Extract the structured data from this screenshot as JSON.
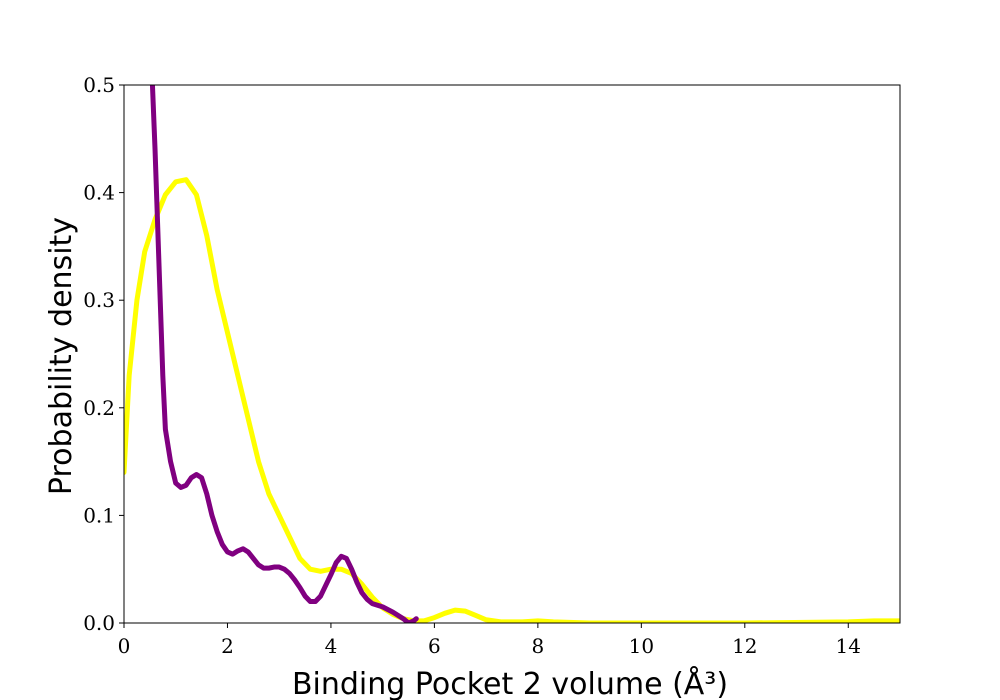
{
  "chart_data": {
    "type": "line",
    "title": "",
    "xlabel": "Binding Pocket 2 volume (Å³)",
    "ylabel": "Probability density",
    "xlim": [
      0,
      15
    ],
    "ylim": [
      0,
      0.5
    ],
    "x_ticks": [
      0,
      2,
      4,
      6,
      8,
      10,
      12,
      14
    ],
    "y_ticks": [
      0.0,
      0.1,
      0.2,
      0.3,
      0.4,
      0.5
    ],
    "x_tick_labels": [
      "0",
      "2",
      "4",
      "6",
      "8",
      "10",
      "12",
      "14"
    ],
    "y_tick_labels": [
      "0.0",
      "0.1",
      "0.2",
      "0.3",
      "0.4",
      "0.5"
    ],
    "grid": false,
    "legend": "none",
    "series": [
      {
        "color": "#ffff00",
        "points": [
          [
            0.0,
            0.14
          ],
          [
            0.1,
            0.23
          ],
          [
            0.25,
            0.3
          ],
          [
            0.4,
            0.345
          ],
          [
            0.6,
            0.375
          ],
          [
            0.8,
            0.398
          ],
          [
            1.0,
            0.41
          ],
          [
            1.2,
            0.412
          ],
          [
            1.4,
            0.398
          ],
          [
            1.6,
            0.36
          ],
          [
            1.8,
            0.31
          ],
          [
            2.0,
            0.27
          ],
          [
            2.2,
            0.23
          ],
          [
            2.4,
            0.19
          ],
          [
            2.6,
            0.15
          ],
          [
            2.8,
            0.12
          ],
          [
            3.0,
            0.1
          ],
          [
            3.2,
            0.08
          ],
          [
            3.4,
            0.06
          ],
          [
            3.6,
            0.05
          ],
          [
            3.8,
            0.048
          ],
          [
            4.0,
            0.05
          ],
          [
            4.2,
            0.05
          ],
          [
            4.4,
            0.046
          ],
          [
            4.6,
            0.036
          ],
          [
            4.8,
            0.024
          ],
          [
            5.0,
            0.014
          ],
          [
            5.2,
            0.008
          ],
          [
            5.4,
            0.004
          ],
          [
            5.6,
            0.002
          ],
          [
            5.8,
            0.002
          ],
          [
            6.0,
            0.005
          ],
          [
            6.2,
            0.009
          ],
          [
            6.4,
            0.012
          ],
          [
            6.6,
            0.011
          ],
          [
            6.8,
            0.007
          ],
          [
            7.0,
            0.003
          ],
          [
            7.3,
            0.001
          ],
          [
            7.7,
            0.001
          ],
          [
            8.0,
            0.002
          ],
          [
            8.3,
            0.001
          ],
          [
            9.0,
            0.0
          ],
          [
            10.0,
            0.0
          ],
          [
            12.0,
            0.0
          ],
          [
            14.0,
            0.001
          ],
          [
            14.5,
            0.002
          ],
          [
            15.0,
            0.002
          ]
        ]
      },
      {
        "color": "#800080",
        "points": [
          [
            0.55,
            0.5
          ],
          [
            0.6,
            0.44
          ],
          [
            0.65,
            0.37
          ],
          [
            0.7,
            0.3
          ],
          [
            0.75,
            0.23
          ],
          [
            0.8,
            0.18
          ],
          [
            0.9,
            0.15
          ],
          [
            1.0,
            0.13
          ],
          [
            1.1,
            0.126
          ],
          [
            1.2,
            0.128
          ],
          [
            1.3,
            0.135
          ],
          [
            1.4,
            0.138
          ],
          [
            1.5,
            0.135
          ],
          [
            1.6,
            0.12
          ],
          [
            1.7,
            0.1
          ],
          [
            1.8,
            0.085
          ],
          [
            1.9,
            0.073
          ],
          [
            2.0,
            0.066
          ],
          [
            2.1,
            0.064
          ],
          [
            2.2,
            0.067
          ],
          [
            2.3,
            0.069
          ],
          [
            2.4,
            0.066
          ],
          [
            2.5,
            0.06
          ],
          [
            2.6,
            0.054
          ],
          [
            2.7,
            0.051
          ],
          [
            2.8,
            0.051
          ],
          [
            2.9,
            0.052
          ],
          [
            3.0,
            0.052
          ],
          [
            3.1,
            0.05
          ],
          [
            3.2,
            0.046
          ],
          [
            3.3,
            0.04
          ],
          [
            3.4,
            0.033
          ],
          [
            3.5,
            0.025
          ],
          [
            3.6,
            0.02
          ],
          [
            3.7,
            0.02
          ],
          [
            3.8,
            0.025
          ],
          [
            3.9,
            0.035
          ],
          [
            4.0,
            0.045
          ],
          [
            4.1,
            0.056
          ],
          [
            4.2,
            0.062
          ],
          [
            4.3,
            0.06
          ],
          [
            4.4,
            0.05
          ],
          [
            4.5,
            0.038
          ],
          [
            4.6,
            0.028
          ],
          [
            4.7,
            0.022
          ],
          [
            4.8,
            0.018
          ],
          [
            5.0,
            0.015
          ],
          [
            5.2,
            0.01
          ],
          [
            5.4,
            0.004
          ],
          [
            5.5,
            0.0
          ],
          [
            5.6,
            0.002
          ],
          [
            5.65,
            0.004
          ]
        ]
      }
    ]
  }
}
